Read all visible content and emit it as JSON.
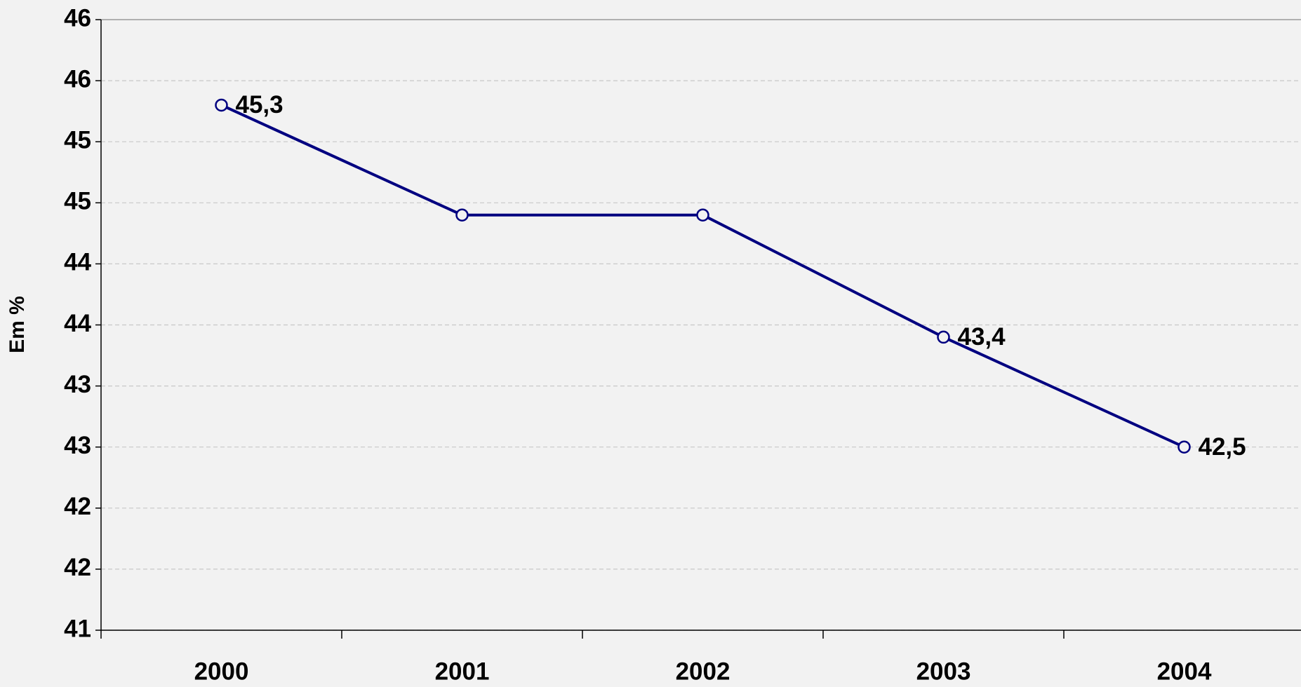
{
  "chart_data": {
    "type": "line",
    "y_label": "Em %",
    "categories": [
      "2000",
      "2001",
      "2002",
      "2003",
      "2004"
    ],
    "series": [
      {
        "color": "#000080",
        "values": [
          45.3,
          44.4,
          44.4,
          43.4,
          42.5
        ],
        "value_labels": [
          "45,3",
          null,
          null,
          "43,4",
          "42,5"
        ]
      }
    ],
    "ylim": [
      41,
      46
    ],
    "yticks": [
      41,
      {
        "value": 41.5,
        "label": "42"
      },
      42,
      {
        "value": 42.5,
        "label": "43"
      },
      43,
      {
        "value": 43.5,
        "label": "44"
      },
      44,
      {
        "value": 44.5,
        "label": "45"
      },
      45,
      {
        "value": 45.5,
        "label": "46"
      },
      46
    ],
    "grid": true
  }
}
